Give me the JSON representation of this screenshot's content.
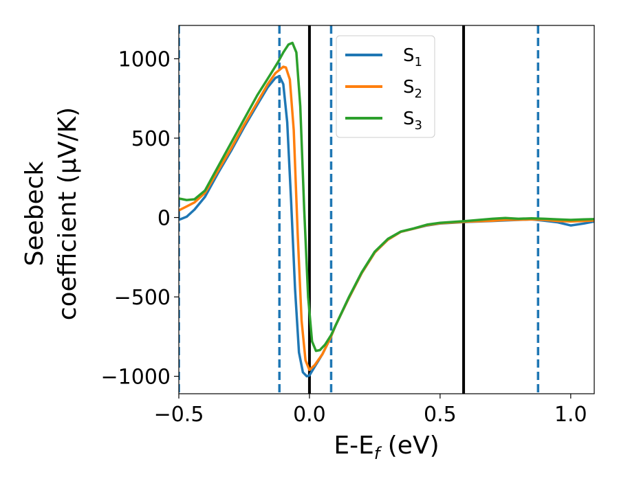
{
  "chart_data": {
    "type": "line",
    "xlabel": {
      "main": "E-E",
      "sub": "f",
      "unit": " (eV)"
    },
    "ylabel": {
      "line1": "Seebeck",
      "line2": "coefficient  (μV/K)"
    },
    "xlim": [
      -0.5,
      1.09
    ],
    "ylim": [
      -1110,
      1210
    ],
    "xticks": [
      -0.5,
      0.0,
      0.5,
      1.0
    ],
    "xtick_labels": [
      "−0.5",
      "0.0",
      "0.5",
      "1.0"
    ],
    "yticks": [
      -1000,
      -500,
      0,
      500,
      1000
    ],
    "ytick_labels": [
      "−1000",
      "−500",
      "0",
      "500",
      "1000"
    ],
    "legend_position": "top-right (inside, near center)",
    "grid": false,
    "vertical_lines": [
      {
        "x": -0.5,
        "style": "dashed",
        "color": "#1f77b4"
      },
      {
        "x": -0.115,
        "style": "dashed",
        "color": "#1f77b4"
      },
      {
        "x": 0.0,
        "style": "solid",
        "color": "#000000"
      },
      {
        "x": 0.083,
        "style": "dashed",
        "color": "#1f77b4"
      },
      {
        "x": 0.59,
        "style": "solid",
        "color": "#000000"
      },
      {
        "x": 0.875,
        "style": "dashed",
        "color": "#1f77b4"
      }
    ],
    "series": [
      {
        "name": "S",
        "subscript": "1",
        "color": "#1f77b4",
        "points": [
          [
            -0.5,
            -15
          ],
          [
            -0.47,
            5
          ],
          [
            -0.44,
            50
          ],
          [
            -0.4,
            130
          ],
          [
            -0.35,
            280
          ],
          [
            -0.3,
            420
          ],
          [
            -0.25,
            570
          ],
          [
            -0.2,
            710
          ],
          [
            -0.16,
            820
          ],
          [
            -0.13,
            880
          ],
          [
            -0.115,
            890
          ],
          [
            -0.1,
            840
          ],
          [
            -0.085,
            600
          ],
          [
            -0.07,
            100
          ],
          [
            -0.055,
            -450
          ],
          [
            -0.04,
            -850
          ],
          [
            -0.025,
            -975
          ],
          [
            -0.01,
            -1000
          ],
          [
            0.0,
            -995
          ],
          [
            0.02,
            -940
          ],
          [
            0.05,
            -860
          ],
          [
            0.08,
            -760
          ],
          [
            0.1,
            -680
          ],
          [
            0.15,
            -510
          ],
          [
            0.2,
            -350
          ],
          [
            0.25,
            -220
          ],
          [
            0.3,
            -140
          ],
          [
            0.35,
            -90
          ],
          [
            0.4,
            -70
          ],
          [
            0.45,
            -50
          ],
          [
            0.5,
            -38
          ],
          [
            0.6,
            -28
          ],
          [
            0.7,
            -22
          ],
          [
            0.75,
            -18
          ],
          [
            0.8,
            -15
          ],
          [
            0.85,
            -12
          ],
          [
            0.9,
            -20
          ],
          [
            0.95,
            -30
          ],
          [
            1.0,
            -50
          ],
          [
            1.05,
            -38
          ],
          [
            1.09,
            -25
          ]
        ]
      },
      {
        "name": "S",
        "subscript": "2",
        "color": "#ff7f0e",
        "points": [
          [
            -0.5,
            45
          ],
          [
            -0.47,
            70
          ],
          [
            -0.44,
            95
          ],
          [
            -0.4,
            155
          ],
          [
            -0.35,
            295
          ],
          [
            -0.3,
            435
          ],
          [
            -0.25,
            585
          ],
          [
            -0.2,
            725
          ],
          [
            -0.16,
            840
          ],
          [
            -0.13,
            910
          ],
          [
            -0.1,
            950
          ],
          [
            -0.09,
            945
          ],
          [
            -0.075,
            870
          ],
          [
            -0.06,
            550
          ],
          [
            -0.045,
            -100
          ],
          [
            -0.03,
            -650
          ],
          [
            -0.015,
            -900
          ],
          [
            0.0,
            -960
          ],
          [
            0.02,
            -930
          ],
          [
            0.05,
            -860
          ],
          [
            0.08,
            -760
          ],
          [
            0.1,
            -680
          ],
          [
            0.15,
            -510
          ],
          [
            0.2,
            -350
          ],
          [
            0.25,
            -220
          ],
          [
            0.3,
            -140
          ],
          [
            0.35,
            -90
          ],
          [
            0.4,
            -70
          ],
          [
            0.45,
            -48
          ],
          [
            0.5,
            -36
          ],
          [
            0.6,
            -26
          ],
          [
            0.7,
            -20
          ],
          [
            0.75,
            -15
          ],
          [
            0.8,
            -14
          ],
          [
            0.85,
            -12
          ],
          [
            0.9,
            -15
          ],
          [
            0.95,
            -22
          ],
          [
            1.0,
            -25
          ],
          [
            1.05,
            -22
          ],
          [
            1.09,
            -18
          ]
        ]
      },
      {
        "name": "S",
        "subscript": "3",
        "color": "#2ca02c",
        "points": [
          [
            -0.5,
            120
          ],
          [
            -0.47,
            110
          ],
          [
            -0.44,
            115
          ],
          [
            -0.4,
            170
          ],
          [
            -0.35,
            320
          ],
          [
            -0.3,
            470
          ],
          [
            -0.25,
            620
          ],
          [
            -0.2,
            770
          ],
          [
            -0.15,
            900
          ],
          [
            -0.12,
            980
          ],
          [
            -0.1,
            1040
          ],
          [
            -0.08,
            1090
          ],
          [
            -0.065,
            1100
          ],
          [
            -0.05,
            1040
          ],
          [
            -0.035,
            700
          ],
          [
            -0.02,
            50
          ],
          [
            -0.005,
            -500
          ],
          [
            0.01,
            -780
          ],
          [
            0.025,
            -840
          ],
          [
            0.04,
            -835
          ],
          [
            0.06,
            -800
          ],
          [
            0.083,
            -740
          ],
          [
            0.1,
            -680
          ],
          [
            0.15,
            -505
          ],
          [
            0.2,
            -345
          ],
          [
            0.25,
            -215
          ],
          [
            0.3,
            -135
          ],
          [
            0.35,
            -88
          ],
          [
            0.4,
            -68
          ],
          [
            0.45,
            -45
          ],
          [
            0.5,
            -33
          ],
          [
            0.6,
            -22
          ],
          [
            0.7,
            -8
          ],
          [
            0.75,
            -3
          ],
          [
            0.8,
            -8
          ],
          [
            0.85,
            -5
          ],
          [
            0.9,
            -8
          ],
          [
            0.95,
            -12
          ],
          [
            1.0,
            -15
          ],
          [
            1.05,
            -12
          ],
          [
            1.09,
            -10
          ]
        ]
      }
    ]
  }
}
